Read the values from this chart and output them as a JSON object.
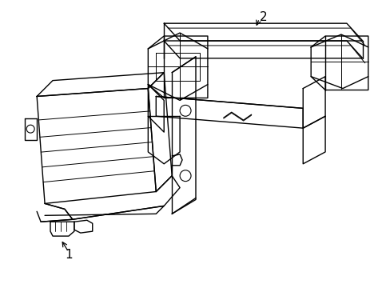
{
  "background_color": "#ffffff",
  "line_color": "#000000",
  "label1": "1",
  "label2": "2",
  "figsize": [
    4.89,
    3.6
  ],
  "dpi": 100
}
